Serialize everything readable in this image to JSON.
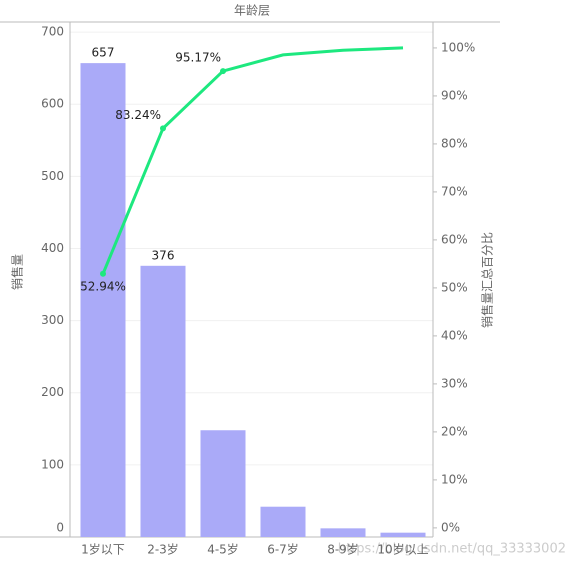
{
  "chart_data": {
    "type": "pareto",
    "title": "年龄层",
    "categories": [
      "1岁以下",
      "2-3岁",
      "4-5岁",
      "6-7岁",
      "8-9岁",
      "10岁以上"
    ],
    "series": [
      {
        "name": "销售量",
        "type": "bar",
        "color": "#aaaaf8",
        "values": [
          657,
          376,
          148,
          42,
          12,
          6
        ],
        "value_labels": [
          "657",
          "376",
          null,
          null,
          null,
          null
        ]
      },
      {
        "name": "销售量汇总百分比",
        "type": "line",
        "axis": "y2",
        "color": "#1de87f",
        "values": [
          52.94,
          83.24,
          95.17,
          98.55,
          99.52,
          100
        ],
        "value_labels": [
          "52.94%",
          "83.24%",
          "95.17%",
          null,
          null,
          null
        ]
      }
    ],
    "ylabel": "销售量",
    "y2label": "销售量汇总百分比",
    "ylim": [
      0,
      714
    ],
    "yticks": [
      0,
      100,
      200,
      300,
      400,
      500,
      600,
      700
    ],
    "y2lim": [
      -1.9,
      105.4
    ],
    "y2ticks": [
      {
        "value": 0,
        "label": "0%"
      },
      {
        "value": 10,
        "label": "10%"
      },
      {
        "value": 20,
        "label": "20%"
      },
      {
        "value": 30,
        "label": "30%"
      },
      {
        "value": 40,
        "label": "40%"
      },
      {
        "value": 50,
        "label": "50%"
      },
      {
        "value": 60,
        "label": "60%"
      },
      {
        "value": 70,
        "label": "70%"
      },
      {
        "value": 80,
        "label": "80%"
      },
      {
        "value": 90,
        "label": "90%"
      },
      {
        "value": 100,
        "label": "100%"
      }
    ],
    "grid": true,
    "watermark": "https://blog.csdn.net/qq_33333002"
  }
}
